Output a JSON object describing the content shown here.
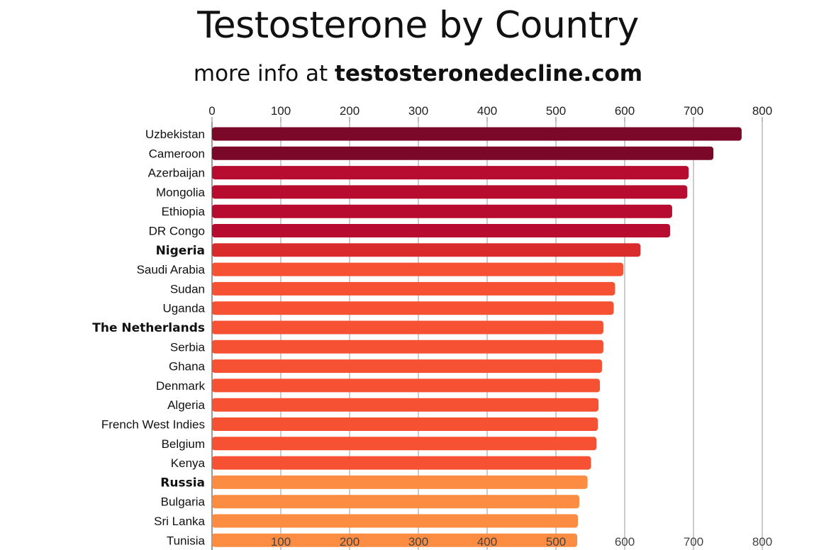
{
  "chart_data": {
    "type": "bar",
    "orientation": "horizontal",
    "title": "Testosterone by Country",
    "subtitle_prefix": "more info at ",
    "subtitle_link": "testosteronedecline.com",
    "xlabel": "",
    "ylabel": "",
    "xlim": [
      0,
      800
    ],
    "ticks": [
      "0",
      "100",
      "200",
      "300",
      "400",
      "500",
      "600",
      "700",
      "800"
    ],
    "bottom_ticks": [
      "100",
      "200",
      "300",
      "400",
      "500",
      "600",
      "700",
      "800"
    ],
    "grid": true,
    "categories": [
      "Uzbekistan",
      "Cameroon",
      "Azerbaijan",
      "Mongolia",
      "Ethiopia",
      "DR Congo",
      "Nigeria",
      "Saudi Arabia",
      "Sudan",
      "Uganda",
      "The Netherlands",
      "Serbia",
      "Ghana",
      "Denmark",
      "Algeria",
      "French West Indies",
      "Belgium",
      "Kenya",
      "Russia",
      "Bulgaria",
      "Sri Lanka",
      "Tunisia"
    ],
    "values": [
      770,
      729,
      693,
      691,
      669,
      666,
      623,
      598,
      586,
      584,
      569,
      569,
      567,
      564,
      562,
      561,
      559,
      551,
      546,
      534,
      532,
      531
    ],
    "bold": [
      false,
      false,
      false,
      false,
      false,
      false,
      true,
      false,
      false,
      false,
      true,
      false,
      false,
      false,
      false,
      false,
      false,
      false,
      true,
      false,
      false,
      false
    ],
    "colors": [
      "#7b0828",
      "#7b0828",
      "#b80b30",
      "#b80b30",
      "#b80b30",
      "#b80b30",
      "#d92b2b",
      "#f75133",
      "#f75133",
      "#f75133",
      "#f75133",
      "#f75133",
      "#f75133",
      "#f75133",
      "#f75133",
      "#f75133",
      "#f75133",
      "#f75133",
      "#fb8c42",
      "#fb8c42",
      "#fb8c42",
      "#fb8c42"
    ]
  }
}
